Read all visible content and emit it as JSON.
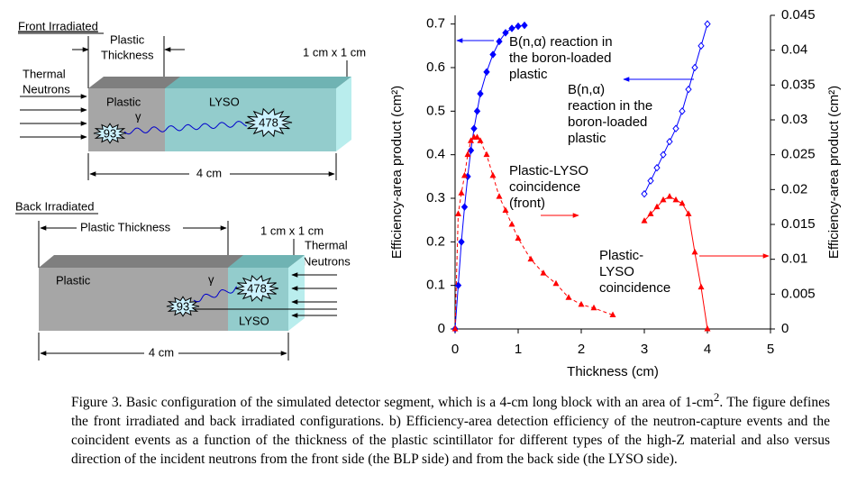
{
  "diagram": {
    "front": {
      "title": "Front Irradiated",
      "thickness": [
        "Plastic",
        "Thickness"
      ],
      "size": "1 cm x 1 cm",
      "neutrons": [
        "Thermal",
        "Neutrons"
      ],
      "plastic": "Plastic",
      "lyso": "LYSO",
      "gamma": "γ",
      "energy_high": "478",
      "energy_low": "93",
      "length": "4 cm"
    },
    "back": {
      "title": "Back Irradiated",
      "thickness": "Plastic Thickness",
      "size": "1 cm x 1 cm",
      "neutrons": [
        "Thermal",
        "Neutrons"
      ],
      "plastic": "Plastic",
      "lyso": "LYSO",
      "gamma": "γ",
      "energy_high": "478",
      "energy_low": "93",
      "length": "4 cm"
    }
  },
  "chart_data": {
    "type": "line",
    "x_label": "Thickness (cm)",
    "y_label": "Efficiency-area product (cm²)",
    "y2_label": "Efficiency-area product (cm²)",
    "y_color": "#0000ff",
    "y2_color": "#ff0000",
    "xlim": [
      0,
      5
    ],
    "xticks": [
      0,
      1,
      2,
      3,
      4,
      5
    ],
    "ylim": [
      0,
      0.72
    ],
    "yticks": [
      0,
      0.1,
      0.2,
      0.3,
      0.4,
      0.5,
      0.6,
      0.7
    ],
    "y2lim": [
      0,
      0.045
    ],
    "y2ticks": [
      0,
      0.005,
      0.01,
      0.015,
      0.02,
      0.025,
      0.03,
      0.035,
      0.04,
      0.045
    ],
    "series": [
      {
        "color": "#0000ff",
        "marker": "diamond-filled",
        "dash": false,
        "axis": "y",
        "x": [
          0,
          0.05,
          0.1,
          0.15,
          0.2,
          0.25,
          0.3,
          0.35,
          0.4,
          0.5,
          0.6,
          0.7,
          0.8,
          0.9,
          1.0,
          1.1
        ],
        "values": [
          0,
          0.1,
          0.2,
          0.28,
          0.35,
          0.41,
          0.46,
          0.5,
          0.54,
          0.59,
          0.63,
          0.66,
          0.68,
          0.69,
          0.695,
          0.697
        ]
      },
      {
        "color": "#0000ff",
        "marker": "diamond-open",
        "dash": false,
        "axis": "y",
        "x": [
          3.0,
          3.1,
          3.2,
          3.3,
          3.4,
          3.5,
          3.6,
          3.7,
          3.8,
          3.9,
          4.0
        ],
        "values": [
          0.31,
          0.34,
          0.37,
          0.4,
          0.43,
          0.46,
          0.5,
          0.55,
          0.6,
          0.65,
          0.7
        ]
      },
      {
        "color": "#ff0000",
        "marker": "triangle",
        "dash": true,
        "axis": "y2",
        "x": [
          0,
          0.05,
          0.1,
          0.15,
          0.2,
          0.25,
          0.3,
          0.35,
          0.4,
          0.5,
          0.6,
          0.7,
          0.8,
          0.9,
          1.0,
          1.2,
          1.4,
          1.6,
          1.8,
          2.0,
          2.2,
          2.5
        ],
        "values": [
          0,
          0.0165,
          0.0195,
          0.022,
          0.025,
          0.027,
          0.0275,
          0.0275,
          0.027,
          0.025,
          0.022,
          0.019,
          0.017,
          0.015,
          0.013,
          0.01,
          0.008,
          0.0065,
          0.0045,
          0.0035,
          0.003,
          0.002
        ]
      },
      {
        "color": "#ff0000",
        "marker": "triangle",
        "dash": false,
        "axis": "y2",
        "x": [
          3.0,
          3.1,
          3.2,
          3.3,
          3.4,
          3.5,
          3.6,
          3.7,
          3.8,
          3.9,
          4.0
        ],
        "values": [
          0.0155,
          0.0165,
          0.0175,
          0.0185,
          0.019,
          0.0185,
          0.018,
          0.0165,
          0.011,
          0.006,
          0
        ]
      }
    ],
    "annotations": [
      {
        "lines": [
          "B(n,α) reaction in",
          "the boron-loaded",
          "plastic"
        ],
        "color": "#0000ff"
      },
      {
        "lines": [
          "B(n,α)",
          "reaction in the",
          "boron-loaded",
          "plastic"
        ],
        "color": "#0000ff"
      },
      {
        "lines": [
          "Plastic-LYSO",
          "coincidence",
          "(front)"
        ],
        "color": "#ff0000"
      },
      {
        "lines": [
          "Plastic-",
          "LYSO",
          "coincidence"
        ],
        "color": "#ff0000"
      }
    ]
  },
  "caption": {
    "before": "Figure 3.  Basic configuration of the simulated detector segment, which is a 4-cm long block with an area of 1-cm",
    "sup": "2",
    "after": ".  The figure defines the front irradiated and back irradiated configurations. b) Efficiency-area detection efficiency of the neutron-capture events and the coincident events as a function of the thickness of the plastic scintillator for different types of the high-Z material and also versus direction of the incident neutrons from the front side (the BLP side) and from the back side (the LYSO side)."
  }
}
